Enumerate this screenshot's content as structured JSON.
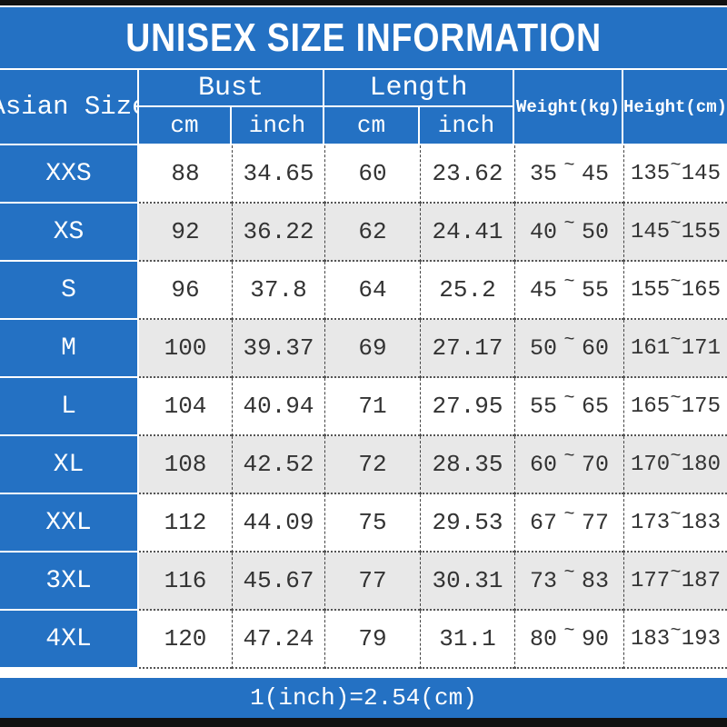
{
  "title": "UNISEX SIZE INFORMATION",
  "footer_note": "1(inch)=2.54(cm)",
  "colors": {
    "accent_blue": "#2471c3",
    "alt_row_gray": "#e8e8e8",
    "bar_black": "#111111",
    "text_dark": "#333333",
    "text_white": "#ffffff"
  },
  "header": {
    "size_column": "Asian Size",
    "bust_group": "Bust",
    "length_group": "Length",
    "unit_cm": "cm",
    "unit_inch": "inch",
    "weight": "Weight(kg)",
    "height": "Height(cm)",
    "tilde": "~"
  },
  "rows": [
    {
      "size": "XXS",
      "bust_cm": "88",
      "bust_in": "34.65",
      "length_cm": "60",
      "length_in": "23.62",
      "weight_min": "35",
      "weight_max": "45",
      "height_min": "135",
      "height_max": "145"
    },
    {
      "size": "XS",
      "bust_cm": "92",
      "bust_in": "36.22",
      "length_cm": "62",
      "length_in": "24.41",
      "weight_min": "40",
      "weight_max": "50",
      "height_min": "145",
      "height_max": "155"
    },
    {
      "size": "S",
      "bust_cm": "96",
      "bust_in": "37.8",
      "length_cm": "64",
      "length_in": "25.2",
      "weight_min": "45",
      "weight_max": "55",
      "height_min": "155",
      "height_max": "165"
    },
    {
      "size": "M",
      "bust_cm": "100",
      "bust_in": "39.37",
      "length_cm": "69",
      "length_in": "27.17",
      "weight_min": "50",
      "weight_max": "60",
      "height_min": "161",
      "height_max": "171"
    },
    {
      "size": "L",
      "bust_cm": "104",
      "bust_in": "40.94",
      "length_cm": "71",
      "length_in": "27.95",
      "weight_min": "55",
      "weight_max": "65",
      "height_min": "165",
      "height_max": "175"
    },
    {
      "size": "XL",
      "bust_cm": "108",
      "bust_in": "42.52",
      "length_cm": "72",
      "length_in": "28.35",
      "weight_min": "60",
      "weight_max": "70",
      "height_min": "170",
      "height_max": "180"
    },
    {
      "size": "XXL",
      "bust_cm": "112",
      "bust_in": "44.09",
      "length_cm": "75",
      "length_in": "29.53",
      "weight_min": "67",
      "weight_max": "77",
      "height_min": "173",
      "height_max": "183"
    },
    {
      "size": "3XL",
      "bust_cm": "116",
      "bust_in": "45.67",
      "length_cm": "77",
      "length_in": "30.31",
      "weight_min": "73",
      "weight_max": "83",
      "height_min": "177",
      "height_max": "187"
    },
    {
      "size": "4XL",
      "bust_cm": "120",
      "bust_in": "47.24",
      "length_cm": "79",
      "length_in": "31.1",
      "weight_min": "80",
      "weight_max": "90",
      "height_min": "183",
      "height_max": "193"
    }
  ]
}
